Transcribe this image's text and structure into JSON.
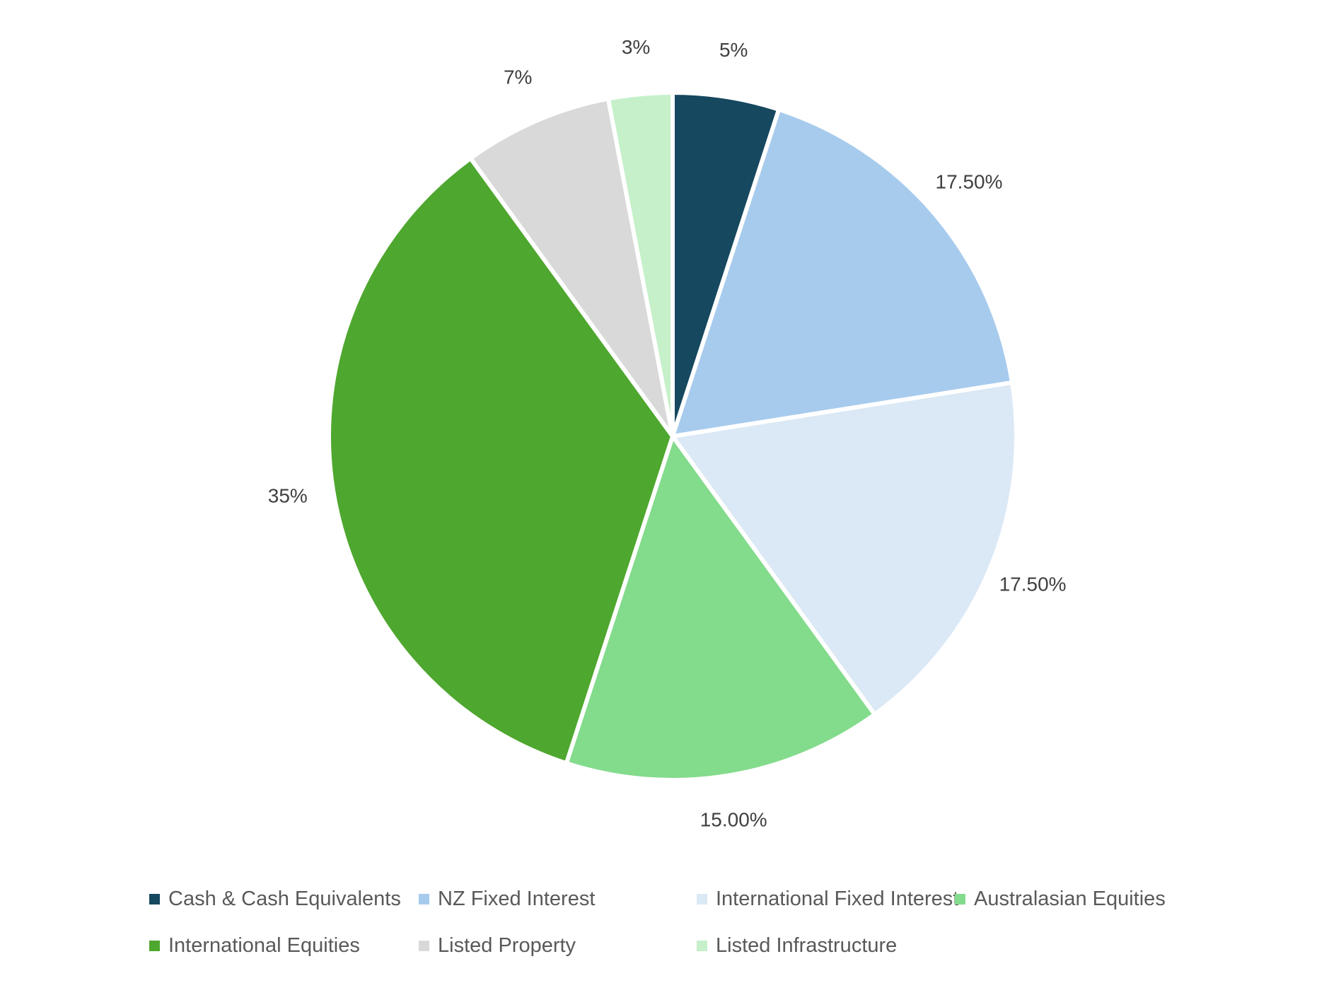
{
  "chart_data": {
    "type": "pie",
    "title": "",
    "start_angle_deg": 0,
    "direction": "clockwise",
    "data_labels": "outside-end-percent",
    "legend_position": "bottom",
    "background_color": "#FFFFFF",
    "label_text_color": "#404040",
    "legend_text_color": "#595959",
    "slice_border_color": "#FFFFFF",
    "slices": [
      {
        "label": "Cash & Cash Equivalents",
        "value": 5,
        "display": "5%",
        "color": "#16485F"
      },
      {
        "label": "NZ Fixed Interest",
        "value": 17.5,
        "display": "17.50%",
        "color": "#A7CBED"
      },
      {
        "label": "International Fixed Interest",
        "value": 17.5,
        "display": "17.50%",
        "color": "#DBE8F5"
      },
      {
        "label": "Australasian Equities",
        "value": 15,
        "display": "15.00%",
        "color": "#83DB8C"
      },
      {
        "label": "International Equities",
        "value": 35,
        "display": "35%",
        "color": "#4EA72E"
      },
      {
        "label": "Listed Property",
        "value": 7,
        "display": "7%",
        "color": "#D9D9D9"
      },
      {
        "label": "Listed Infrastructure",
        "value": 3,
        "display": "3%",
        "color": "#C5F0C9"
      }
    ]
  }
}
